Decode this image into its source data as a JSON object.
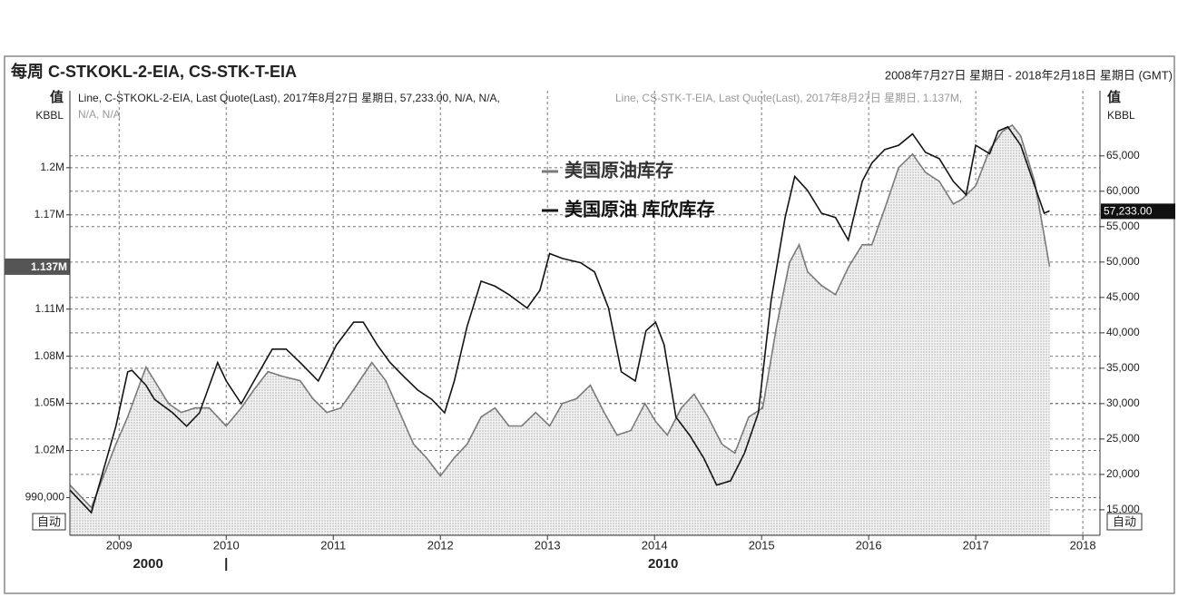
{
  "chart_data": {
    "type": "line",
    "title": "每周 C-STKOKL-2-EIA, CS-STK-T-EIA",
    "date_range": "2008年7月27日 星期日 - 2018年2月18日 星期日 (GMT)",
    "header_black": "Line, C-STKOKL-2-EIA, Last Quote(Last), 2017年8月27日 星期日, 57,233.00, N/A, N/A,",
    "header_gray": "Line, CS-STK-T-EIA, Last Quote(Last), 2017年8月27日 星期日, 1.137M,",
    "header_gray_2": "N/A, N/A",
    "y_label": "值",
    "y_unit": "KBBL",
    "y2_label": "值",
    "y2_unit": "KBBL",
    "auto_left": "自动",
    "auto_right": "自动",
    "bottom_labels": [
      {
        "value": 2009.27,
        "label": "2000"
      },
      {
        "value": 2010,
        "label": "|"
      },
      {
        "value": 2014.08,
        "label": "2010"
      }
    ],
    "xlim": [
      2008.54,
      2018.16
    ],
    "xticks": [
      2009,
      2010,
      2011,
      2012,
      2013,
      2014,
      2015,
      2016,
      2017,
      2018
    ],
    "ylim": [
      966000,
      1249000
    ],
    "yticks": [
      {
        "value": 990000,
        "label": "990,000"
      },
      {
        "value": 1020000,
        "label": "1.02M"
      },
      {
        "value": 1050000,
        "label": "1.05M"
      },
      {
        "value": 1080000,
        "label": "1.08M"
      },
      {
        "value": 1110000,
        "label": "1.11M"
      },
      {
        "value": 1170000,
        "label": "1.17M"
      },
      {
        "value": 1200000,
        "label": "1.2M"
      }
    ],
    "y2lim": [
      11400,
      74200
    ],
    "y2ticks": [
      {
        "value": 15000,
        "label": "15,000"
      },
      {
        "value": 20000,
        "label": "20,000"
      },
      {
        "value": 25000,
        "label": "25,000"
      },
      {
        "value": 30000,
        "label": "30,000"
      },
      {
        "value": 35000,
        "label": "35,000"
      },
      {
        "value": 40000,
        "label": "40,000"
      },
      {
        "value": 45000,
        "label": "45,000"
      },
      {
        "value": 50000,
        "label": "50,000"
      },
      {
        "value": 55000,
        "label": "55,000"
      },
      {
        "value": 60000,
        "label": "60,000"
      },
      {
        "value": 65000,
        "label": "65,000"
      }
    ],
    "grid": true,
    "series": [
      {
        "name": "美国原油库存",
        "color": "#7a7a7a",
        "fill": true,
        "last_label": "1.137M",
        "x": [
          2008.54,
          2008.74,
          2008.97,
          2009.08,
          2009.25,
          2009.33,
          2009.46,
          2009.58,
          2009.71,
          2009.84,
          2010.0,
          2010.14,
          2010.26,
          2010.39,
          2010.52,
          2010.69,
          2010.81,
          2010.94,
          2011.07,
          2011.19,
          2011.36,
          2011.49,
          2011.62,
          2011.75,
          2011.87,
          2012.0,
          2012.13,
          2012.25,
          2012.38,
          2012.51,
          2012.64,
          2012.76,
          2012.89,
          2013.02,
          2013.14,
          2013.27,
          2013.4,
          2013.53,
          2013.65,
          2013.78,
          2013.91,
          2014.01,
          2014.12,
          2014.25,
          2014.37,
          2014.5,
          2014.63,
          2014.75,
          2014.88,
          2015.01,
          2015.14,
          2015.26,
          2015.35,
          2015.43,
          2015.56,
          2015.69,
          2015.81,
          2015.94,
          2016.03,
          2016.15,
          2016.28,
          2016.41,
          2016.53,
          2016.66,
          2016.79,
          2016.87,
          2017.0,
          2017.13,
          2017.25,
          2017.34,
          2017.42,
          2017.55,
          2017.64,
          2017.69
        ],
        "values": [
          998000,
          983700,
          1024000,
          1041300,
          1073000,
          1064400,
          1050000,
          1044200,
          1047100,
          1047100,
          1035600,
          1047100,
          1058700,
          1070200,
          1067300,
          1064400,
          1052900,
          1044200,
          1047100,
          1058700,
          1076000,
          1064400,
          1044200,
          1024000,
          1015400,
          1003800,
          1015400,
          1024000,
          1041300,
          1047100,
          1035600,
          1035600,
          1044200,
          1035600,
          1050000,
          1052900,
          1061500,
          1044200,
          1029800,
          1032700,
          1050000,
          1038500,
          1029800,
          1047100,
          1055800,
          1041300,
          1024000,
          1018300,
          1041300,
          1047100,
          1099000,
          1139400,
          1151000,
          1133700,
          1125000,
          1119200,
          1136500,
          1151000,
          1151000,
          1174000,
          1200000,
          1208700,
          1197100,
          1191300,
          1176900,
          1179800,
          1188500,
          1211500,
          1223100,
          1227100,
          1220200,
          1191300,
          1156700,
          1137000
        ]
      },
      {
        "name": "美国原油 库欣库存",
        "color": "#141414",
        "axis": "y2",
        "last_label": "57,233.00",
        "x": [
          2008.54,
          2008.74,
          2008.97,
          2009.08,
          2009.12,
          2009.25,
          2009.33,
          2009.5,
          2009.63,
          2009.75,
          2009.92,
          2010.0,
          2010.14,
          2010.26,
          2010.43,
          2010.56,
          2010.69,
          2010.86,
          2011.03,
          2011.19,
          2011.28,
          2011.41,
          2011.53,
          2011.66,
          2011.79,
          2011.92,
          2012.04,
          2012.13,
          2012.25,
          2012.38,
          2012.51,
          2012.64,
          2012.81,
          2012.93,
          2013.02,
          2013.14,
          2013.31,
          2013.44,
          2013.57,
          2013.69,
          2013.82,
          2013.92,
          2014.01,
          2014.09,
          2014.2,
          2014.33,
          2014.46,
          2014.58,
          2014.71,
          2014.84,
          2014.97,
          2015.09,
          2015.22,
          2015.31,
          2015.43,
          2015.56,
          2015.69,
          2015.81,
          2015.94,
          2016.03,
          2016.15,
          2016.28,
          2016.41,
          2016.53,
          2016.66,
          2016.79,
          2016.91,
          2017.0,
          2017.13,
          2017.21,
          2017.3,
          2017.42,
          2017.55,
          2017.64,
          2017.69
        ],
        "values": [
          17800,
          14600,
          26800,
          34500,
          34700,
          32600,
          30600,
          28700,
          26800,
          28700,
          35800,
          33200,
          30000,
          33200,
          37700,
          37700,
          35800,
          33200,
          38300,
          41500,
          41500,
          38300,
          35800,
          33800,
          31900,
          30600,
          28700,
          33200,
          40900,
          47300,
          46600,
          45400,
          43500,
          46000,
          51200,
          50500,
          49900,
          48600,
          43500,
          34500,
          33200,
          40300,
          41500,
          38300,
          28100,
          25500,
          22300,
          18500,
          19100,
          23000,
          28700,
          44700,
          56300,
          62100,
          60100,
          56900,
          56300,
          53100,
          61400,
          64000,
          65900,
          66500,
          68100,
          65500,
          64600,
          61400,
          59500,
          66500,
          65300,
          68500,
          69100,
          66500,
          60800,
          56900,
          57233
        ]
      }
    ]
  }
}
